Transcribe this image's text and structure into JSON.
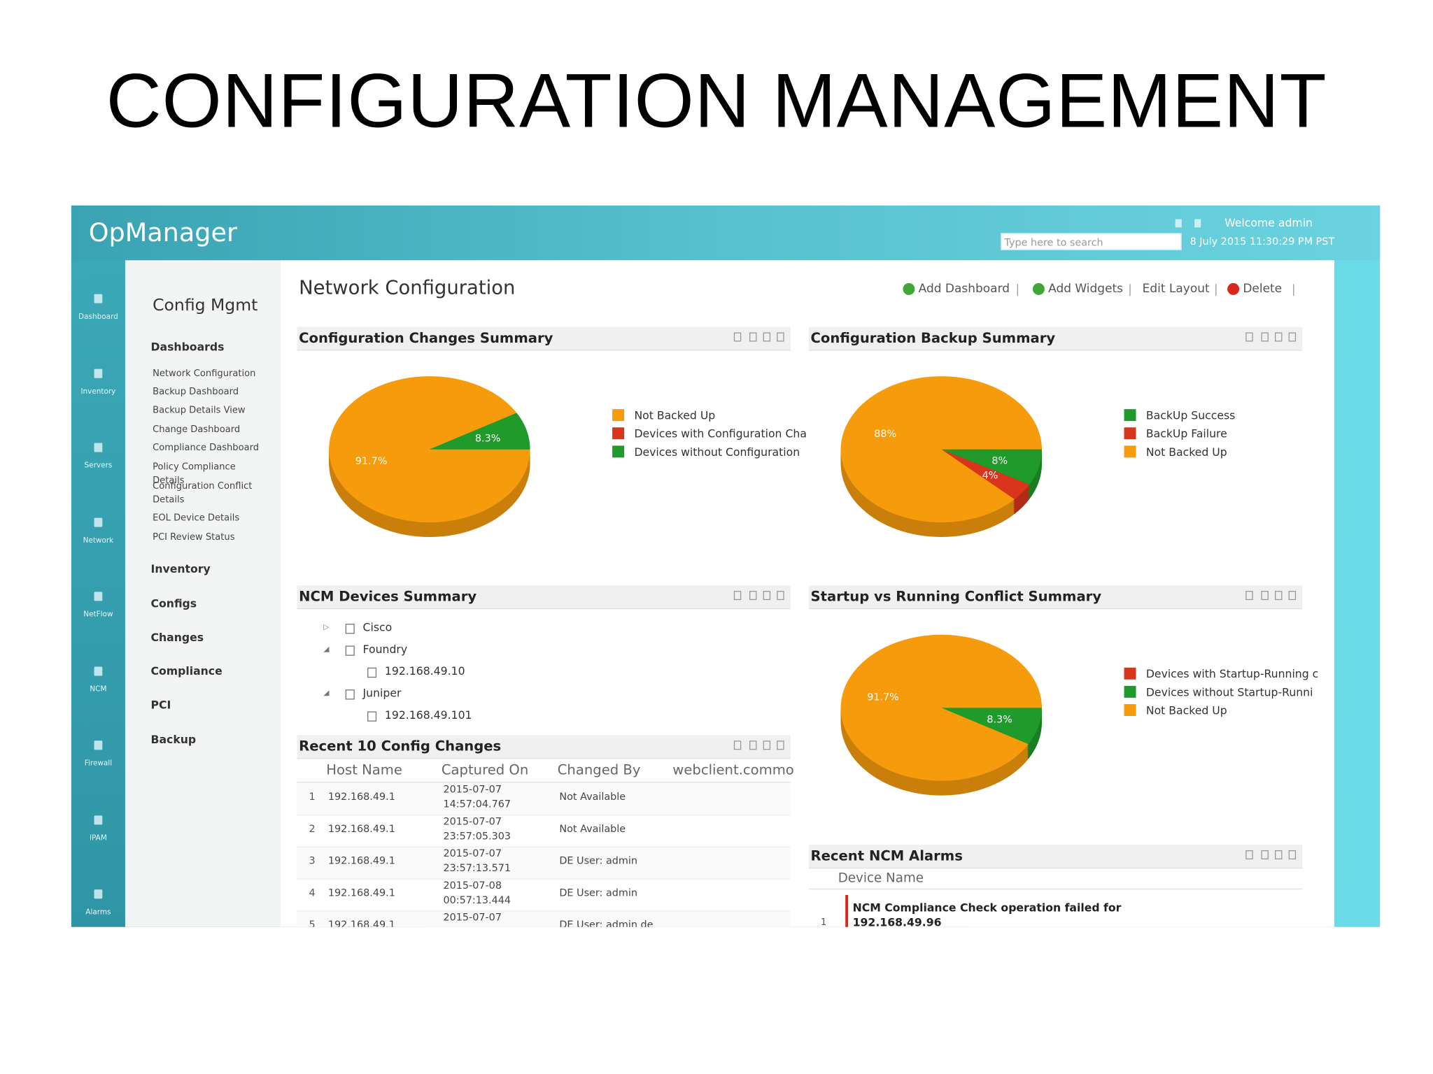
{
  "slide": {
    "title": "CONFIGURATION MANAGEMENT"
  },
  "app": {
    "logo": "OpManager",
    "search_placeholder": "Type here to search",
    "welcome": "Welcome admin",
    "datetime": "8 July 2015 11:30:29 PM PST"
  },
  "left_nav": [
    "Dashboard",
    "Inventory",
    "Servers",
    "Network",
    "NetFlow",
    "NCM",
    "Firewall",
    "IPAM",
    "Alarms"
  ],
  "sidebar": {
    "title": "Config Mgmt",
    "dashboards": "Dashboards",
    "dashboard_items": [
      "Network Configuration",
      "Backup Dashboard",
      "Backup Details View",
      "Change Dashboard",
      "Compliance Dashboard",
      "Policy Compliance Details",
      "Configuration Conflict Details",
      "EOL Device Details",
      "PCI Review Status"
    ],
    "sections": [
      "Inventory",
      "Configs",
      "Changes",
      "Compliance",
      "PCI",
      "Backup"
    ]
  },
  "header": {
    "title": "Network Configuration",
    "actions": [
      "Add Dashboard",
      "Add Widgets",
      "Edit Layout",
      "Delete"
    ]
  },
  "chart_data": [
    {
      "type": "pie",
      "title": "Configuration Changes Summary",
      "categories": [
        "Not Backed Up",
        "Devices with Configuration Cha",
        "Devices without Configuration"
      ],
      "values": [
        91.7,
        0,
        8.3
      ],
      "value_labels": [
        "91.7%",
        null,
        "8.3%"
      ],
      "colors": [
        "#f59b0c",
        "#d8351c",
        "#1f9a2b"
      ]
    },
    {
      "type": "pie",
      "title": "Configuration Backup Summary",
      "categories": [
        "BackUp Success",
        "BackUp Failure",
        "Not Backed Up"
      ],
      "values": [
        8,
        4,
        88
      ],
      "value_labels": [
        "8%",
        "4%",
        "88%"
      ],
      "colors": [
        "#1f9a2b",
        "#d8351c",
        "#f59b0c"
      ]
    },
    {
      "type": "pie",
      "title": "Startup vs Running Conflict Summary",
      "categories": [
        "Devices with Startup-Running c",
        "Devices without Startup-Runni",
        "Not Backed Up"
      ],
      "values": [
        0,
        8.3,
        91.7
      ],
      "value_labels": [
        null,
        "8.3%",
        "91.7%"
      ],
      "colors": [
        "#d8351c",
        "#1f9a2b",
        "#f59b0c"
      ]
    }
  ],
  "ncm_devices": {
    "title": "NCM Devices Summary",
    "tree": [
      {
        "label": "Cisco",
        "children": []
      },
      {
        "label": "Foundry",
        "children": [
          "192.168.49.10"
        ]
      },
      {
        "label": "Juniper",
        "children": [
          "192.168.49.101"
        ]
      }
    ]
  },
  "config_changes": {
    "title": "Recent 10 Config Changes",
    "columns": [
      "Host Name",
      "Captured On",
      "Changed By",
      "webclient.commo"
    ],
    "rows": [
      [
        "1",
        "192.168.49.1",
        "2015-07-07 14:57:04.767",
        "Not Available"
      ],
      [
        "2",
        "192.168.49.1",
        "2015-07-07 23:57:05.303",
        "Not Available"
      ],
      [
        "3",
        "192.168.49.1",
        "2015-07-07 23:57:13.571",
        "DE User: admin"
      ],
      [
        "4",
        "192.168.49.1",
        "2015-07-08 00:57:13.444",
        "DE User: admin"
      ],
      [
        "5",
        "192.168.49.1",
        "2015-07-07",
        "DE User: admin de"
      ]
    ]
  },
  "alarms": {
    "title": "Recent NCM Alarms",
    "columns": [
      "Device Name"
    ],
    "rows": [
      [
        "1",
        "NCM Compliance Check operation failed for 192.168.49.96"
      ]
    ]
  }
}
